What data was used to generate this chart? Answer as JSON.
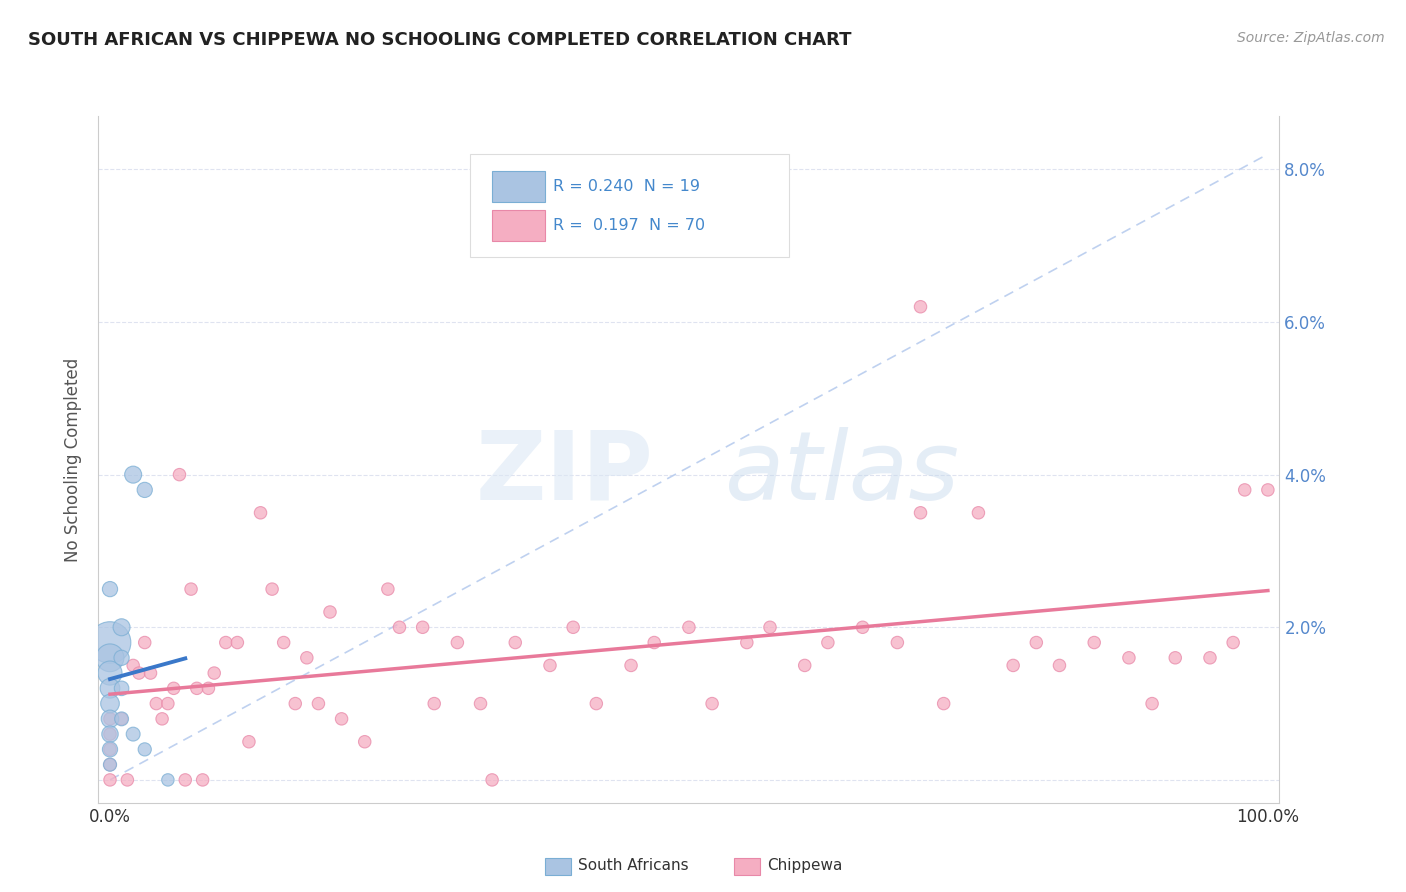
{
  "title": "SOUTH AFRICAN VS CHIPPEWA NO SCHOOLING COMPLETED CORRELATION CHART",
  "source": "Source: ZipAtlas.com",
  "ylabel": "No Schooling Completed",
  "sa_color": "#aac4e2",
  "ch_color": "#f5aec2",
  "sa_edge_color": "#7aaed4",
  "ch_edge_color": "#e888a8",
  "sa_line_color": "#3a78c9",
  "ch_line_color": "#e8799a",
  "diagonal_color": "#b8ccee",
  "grid_color": "#d8dded",
  "background_color": "#ffffff",
  "title_color": "#222222",
  "source_color": "#999999",
  "tick_color": "#5588cc",
  "ylabel_color": "#555555",
  "legend_text_color": "#4488cc",
  "xlim": [
    -0.01,
    1.01
  ],
  "ylim": [
    -0.003,
    0.087
  ],
  "yticks": [
    0.0,
    0.02,
    0.04,
    0.06,
    0.08
  ],
  "ytick_labels_right": [
    "",
    "2.0%",
    "4.0%",
    "6.0%",
    "8.0%"
  ],
  "sa_x": [
    0.0,
    0.0,
    0.0,
    0.0,
    0.0,
    0.0,
    0.0,
    0.0,
    0.01,
    0.01,
    0.01,
    0.01,
    0.02,
    0.02,
    0.03,
    0.03,
    0.0,
    0.0,
    0.05
  ],
  "sa_y": [
    0.018,
    0.016,
    0.014,
    0.012,
    0.01,
    0.008,
    0.006,
    0.004,
    0.02,
    0.016,
    0.012,
    0.008,
    0.04,
    0.006,
    0.038,
    0.004,
    0.025,
    0.002,
    0.0
  ],
  "sa_sizes": [
    900,
    400,
    300,
    200,
    180,
    160,
    140,
    120,
    150,
    120,
    110,
    100,
    150,
    100,
    120,
    90,
    120,
    90,
    80
  ],
  "ch_x": [
    0.0,
    0.0,
    0.0,
    0.0,
    0.0,
    0.02,
    0.03,
    0.04,
    0.05,
    0.06,
    0.07,
    0.08,
    0.09,
    0.1,
    0.11,
    0.12,
    0.13,
    0.14,
    0.15,
    0.16,
    0.17,
    0.18,
    0.19,
    0.2,
    0.22,
    0.24,
    0.25,
    0.27,
    0.28,
    0.3,
    0.32,
    0.33,
    0.35,
    0.38,
    0.4,
    0.42,
    0.45,
    0.47,
    0.5,
    0.52,
    0.55,
    0.57,
    0.6,
    0.62,
    0.65,
    0.68,
    0.7,
    0.72,
    0.75,
    0.78,
    0.8,
    0.82,
    0.85,
    0.88,
    0.9,
    0.92,
    0.95,
    0.97,
    0.98,
    1.0,
    0.01,
    0.015,
    0.025,
    0.035,
    0.045,
    0.055,
    0.065,
    0.075,
    0.085,
    0.7
  ],
  "ch_y": [
    0.008,
    0.006,
    0.004,
    0.002,
    0.0,
    0.015,
    0.018,
    0.01,
    0.01,
    0.04,
    0.025,
    0.0,
    0.014,
    0.018,
    0.018,
    0.005,
    0.035,
    0.025,
    0.018,
    0.01,
    0.016,
    0.01,
    0.022,
    0.008,
    0.005,
    0.025,
    0.02,
    0.02,
    0.01,
    0.018,
    0.01,
    0.0,
    0.018,
    0.015,
    0.02,
    0.01,
    0.015,
    0.018,
    0.02,
    0.01,
    0.018,
    0.02,
    0.015,
    0.018,
    0.02,
    0.018,
    0.062,
    0.01,
    0.035,
    0.015,
    0.018,
    0.015,
    0.018,
    0.016,
    0.01,
    0.016,
    0.016,
    0.018,
    0.038,
    0.038,
    0.008,
    0.0,
    0.014,
    0.014,
    0.008,
    0.012,
    0.0,
    0.012,
    0.012,
    0.035
  ],
  "ch_sizes": [
    80,
    80,
    80,
    80,
    80,
    80,
    80,
    80,
    80,
    80,
    80,
    80,
    80,
    80,
    80,
    80,
    80,
    80,
    80,
    80,
    80,
    80,
    80,
    80,
    80,
    80,
    80,
    80,
    80,
    80,
    80,
    80,
    80,
    80,
    80,
    80,
    80,
    80,
    80,
    80,
    80,
    80,
    80,
    80,
    80,
    80,
    80,
    80,
    80,
    80,
    80,
    80,
    80,
    80,
    80,
    80,
    80,
    80,
    80,
    80,
    80,
    80,
    80,
    80,
    80,
    80,
    80,
    80,
    80,
    80
  ]
}
